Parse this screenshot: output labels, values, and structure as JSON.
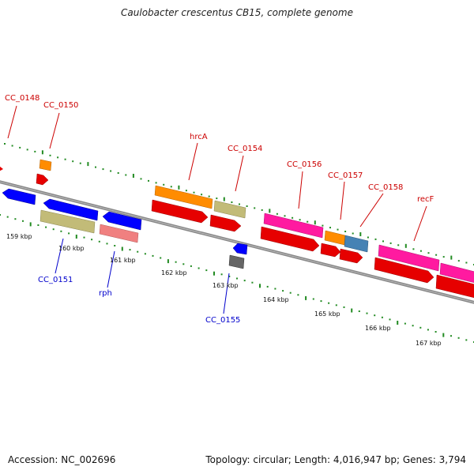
{
  "title": "Caulobacter crescentus CB15, complete genome",
  "footer": {
    "accession": "Accession: NC_002696",
    "summary": "Topology: circular; Length: 4,016,947 bp; Genes: 3,794"
  },
  "colors": {
    "backbone": "#8a8a8a",
    "tick_dot": "#228b22",
    "label_forward": "#cc0000",
    "label_reverse": "#0000cc",
    "feature_red": "#e60000",
    "feature_blue": "#0000ff",
    "feature_orange": "#ff8c00",
    "feature_khaki": "#c2bb78",
    "feature_magenta": "#ff1aa0",
    "feature_salmon": "#f08080",
    "feature_steelblue": "#4682b4",
    "feature_gray": "#666666"
  },
  "ticks": [
    {
      "label": "159 kbp",
      "kbp": 159
    },
    {
      "label": "160 kbp",
      "kbp": 160
    },
    {
      "label": "161 kbp",
      "kbp": 161
    },
    {
      "label": "162 kbp",
      "kbp": 162
    },
    {
      "label": "163 kbp",
      "kbp": 163
    },
    {
      "label": "164 kbp",
      "kbp": 164
    },
    {
      "label": "165 kbp",
      "kbp": 165
    },
    {
      "label": "166 kbp",
      "kbp": 166
    },
    {
      "label": "167 kbp",
      "kbp": 167
    }
  ],
  "labels": [
    {
      "text": "CC_0148",
      "strand": "forward"
    },
    {
      "text": "CC_0150",
      "strand": "forward"
    },
    {
      "text": "hrcA",
      "strand": "forward"
    },
    {
      "text": "CC_0154",
      "strand": "forward"
    },
    {
      "text": "CC_0156",
      "strand": "forward"
    },
    {
      "text": "CC_0157",
      "strand": "forward"
    },
    {
      "text": "CC_0158",
      "strand": "forward"
    },
    {
      "text": "recF",
      "strand": "forward"
    },
    {
      "text": "CC_0151",
      "strand": "reverse"
    },
    {
      "text": "rph",
      "strand": "reverse"
    },
    {
      "text": "CC_0155",
      "strand": "reverse"
    }
  ]
}
